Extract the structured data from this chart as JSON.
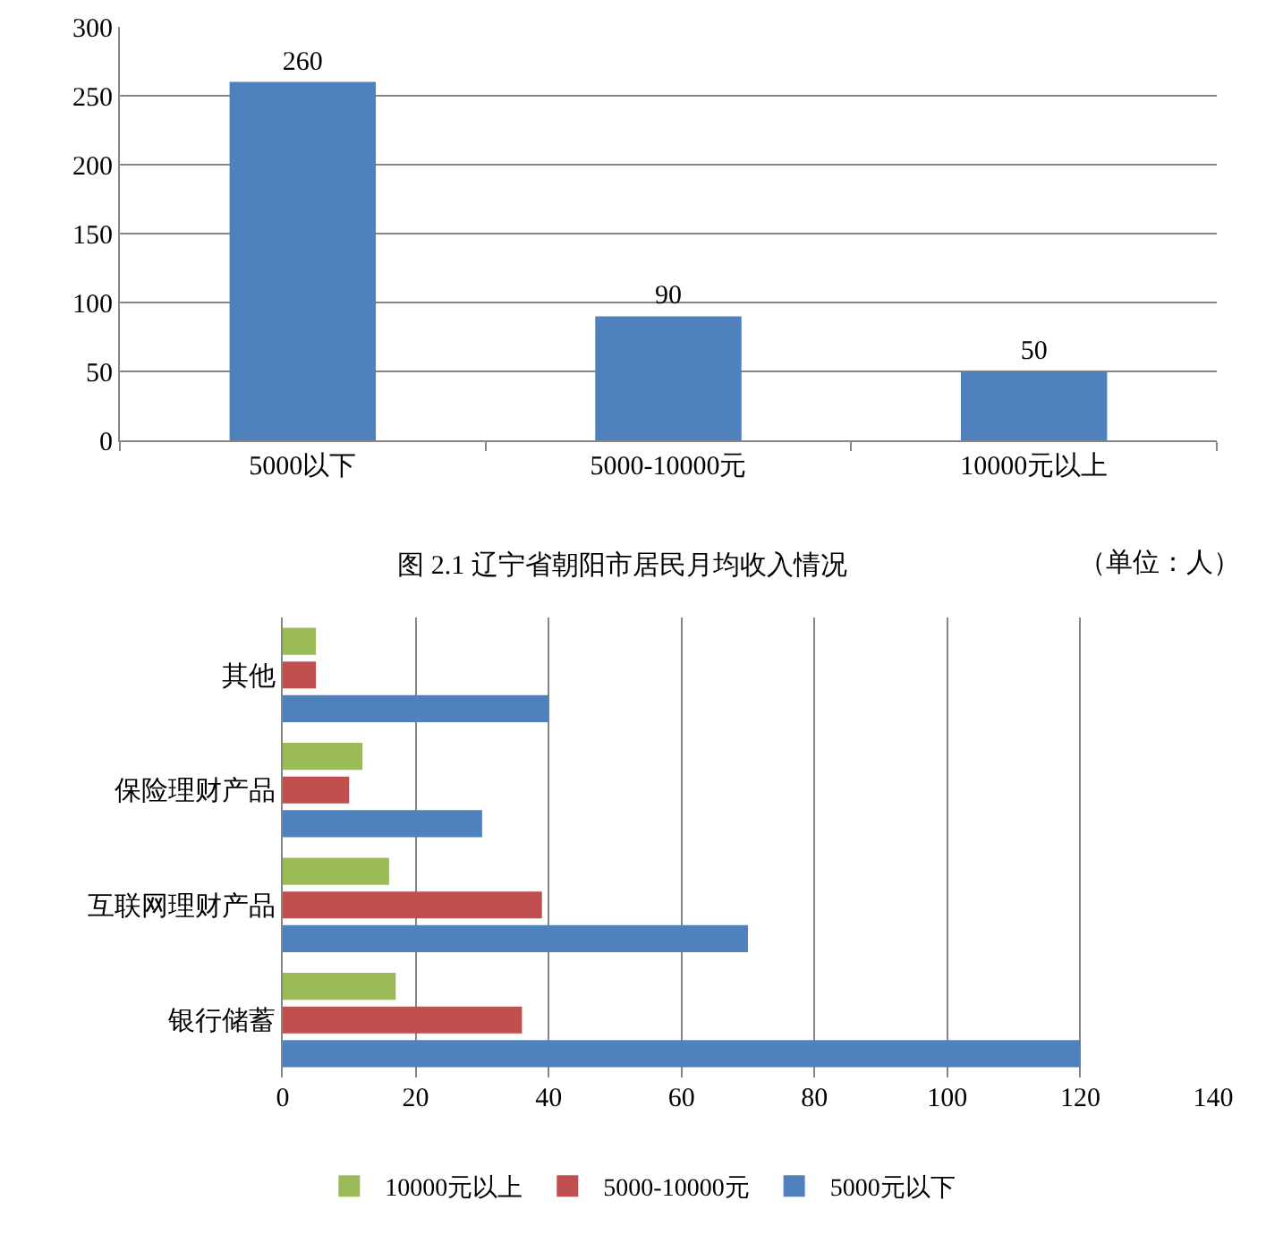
{
  "chart_data": [
    {
      "type": "bar",
      "title": "图 2.1 辽宁省朝阳市居民月均收入情况",
      "annotations": [
        "（单位：人）"
      ],
      "categories": [
        "5000以下",
        "5000-10000元",
        "10000元以上"
      ],
      "values": [
        260,
        90,
        50
      ],
      "color": "#4f81bd",
      "ylim": [
        0,
        300
      ],
      "yticks": [
        0,
        50,
        100,
        150,
        200,
        250,
        300
      ],
      "grid": "y",
      "data_labels": true
    },
    {
      "type": "bar",
      "orientation": "horizontal",
      "categories": [
        "其他",
        "保险理财产品",
        "互联网理财产品",
        "银行储蓄"
      ],
      "series": [
        {
          "name": "10000元以上",
          "color": "#9bbb59",
          "values": [
            5,
            12,
            16,
            17
          ]
        },
        {
          "name": "5000-10000元",
          "color": "#c0504d",
          "values": [
            5,
            10,
            39,
            36
          ]
        },
        {
          "name": "5000元以下",
          "color": "#4f81bd",
          "values": [
            40,
            30,
            70,
            120
          ]
        }
      ],
      "xlim": [
        0,
        140
      ],
      "xticks": [
        0,
        20,
        40,
        60,
        80,
        100,
        120,
        140
      ],
      "grid": "x",
      "legend": "bottom"
    }
  ]
}
